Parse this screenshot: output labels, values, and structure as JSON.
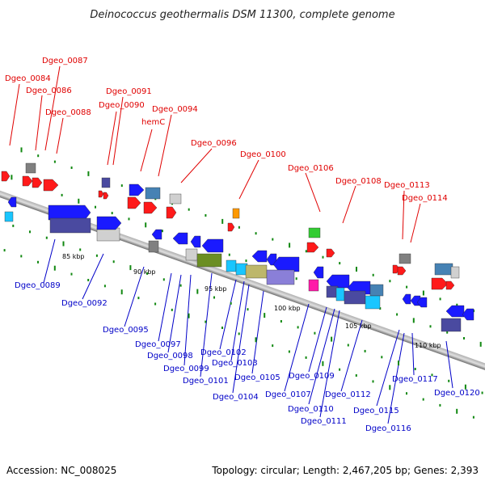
{
  "title": "Deinococcus geothermalis DSM 11300, complete genome",
  "accession": "Accession: NC_008025",
  "summary": "Topology: circular; Length: 2,467,205 bp; Genes: 2,393",
  "scale_labels": [
    "85 kbp",
    "90 kbp",
    "95 kbp",
    "100 kbp",
    "105 kbp",
    "110 kbp"
  ],
  "top_labels": [
    "Dgeo_0084",
    "Dgeo_0086",
    "Dgeo_0087",
    "Dgeo_0088",
    "Dgeo_0090",
    "Dgeo_0091",
    "hemC",
    "Dgeo_0094",
    "Dgeo_0096",
    "Dgeo_0100",
    "Dgeo_0106",
    "Dgeo_0108",
    "Dgeo_0113",
    "Dgeo_0114"
  ],
  "bottom_labels": [
    "Dgeo_0089",
    "Dgeo_0092",
    "Dgeo_0095",
    "Dgeo_0097",
    "Dgeo_0098",
    "Dgeo_0099",
    "Dgeo_0101",
    "Dgeo_0102",
    "Dgeo_0103",
    "Dgeo_0104",
    "Dgeo_0105",
    "Dgeo_0107",
    "Dgeo_0109",
    "Dgeo_0110",
    "Dgeo_0111",
    "Dgeo_0112",
    "Dgeo_0115",
    "Dgeo_0116",
    "Dgeo_0117",
    "Dgeo_0120"
  ],
  "colors": {
    "top_label": "#e00000",
    "bottom_label": "#0000c8",
    "red": "#ff1a1a",
    "blue": "#1a1aff",
    "navy": "#4a4aa0",
    "grey": "#808080",
    "lightgrey": "#d0d0d0",
    "green": "#33cc33",
    "olive": "#6b8e23",
    "cyan": "#19c6ff",
    "khaki": "#bdb76b",
    "lavender": "#8a7fd8",
    "magenta": "#ff1aa8",
    "orange": "#ff9900",
    "salmon": "#ff8a80",
    "steelblue": "#4682b4"
  }
}
